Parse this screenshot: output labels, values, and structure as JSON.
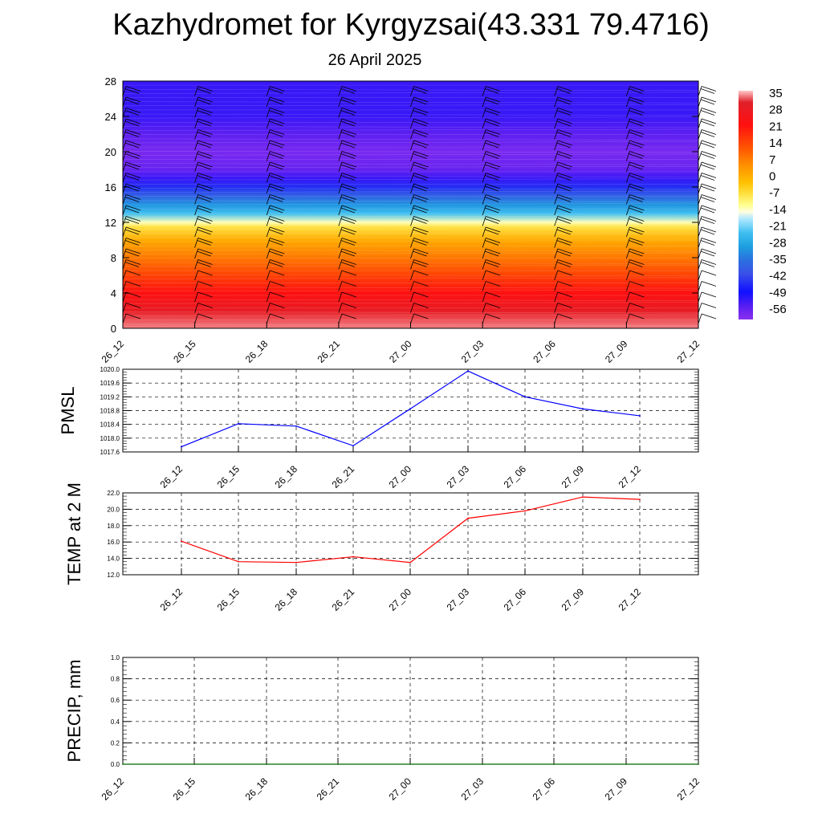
{
  "title": "Kazhydromet for Kyrgyzsai(43.331 79.4716)",
  "subtitle": "26 April 2025",
  "colorbar": {
    "labels": [
      "35",
      "28",
      "21",
      "14",
      "7",
      "0",
      "-7",
      "-14",
      "-21",
      "-28",
      "-35",
      "-42",
      "-49",
      "-56"
    ]
  },
  "chart_data": [
    {
      "type": "heatmap",
      "description": "Temperature cross-section vs height with wind barbs",
      "x_categories": [
        "26_12",
        "26_15",
        "26_18",
        "26_21",
        "27_00",
        "27_03",
        "27_06",
        "27_09",
        "27_12"
      ],
      "y_ticks": [
        "0",
        "4",
        "8",
        "12",
        "16",
        "20",
        "24",
        "28"
      ],
      "ylim": [
        0,
        28
      ],
      "profile": [
        {
          "y": 0,
          "t": 33
        },
        {
          "y": 2,
          "t": 28
        },
        {
          "y": 4,
          "t": 21
        },
        {
          "y": 6,
          "t": 14
        },
        {
          "y": 8,
          "t": 7
        },
        {
          "y": 10,
          "t": 0
        },
        {
          "y": 11.5,
          "t": -8
        },
        {
          "y": 12,
          "t": -14
        },
        {
          "y": 13,
          "t": -24
        },
        {
          "y": 14,
          "t": -31
        },
        {
          "y": 15,
          "t": -38
        },
        {
          "y": 16,
          "t": -45
        },
        {
          "y": 17,
          "t": -52
        },
        {
          "y": 18,
          "t": -56
        },
        {
          "y": 20,
          "t": -58
        },
        {
          "y": 22,
          "t": -55
        },
        {
          "y": 24,
          "t": -52
        },
        {
          "y": 26,
          "t": -52
        },
        {
          "y": 28,
          "t": -52
        }
      ]
    },
    {
      "type": "line",
      "ylabel": "PMSL",
      "categories": [
        "26_12",
        "26_15",
        "26_18",
        "26_21",
        "27_00",
        "27_03",
        "27_06",
        "27_09",
        "27_12"
      ],
      "series": [
        {
          "values": [
            1017.75,
            1018.42,
            1018.35,
            1017.78,
            1018.85,
            1019.95,
            1019.2,
            1018.85,
            1018.65
          ],
          "color": "#0000ff"
        }
      ],
      "y_ticks": [
        "1017.6",
        "1018.0",
        "1018.4",
        "1018.8",
        "1019.2",
        "1019.6",
        "1020.0"
      ],
      "ylim": [
        1017.6,
        1020.0
      ],
      "grid": true
    },
    {
      "type": "line",
      "ylabel": "TEMP at 2 M",
      "categories": [
        "26_12",
        "26_15",
        "26_18",
        "26_21",
        "27_00",
        "27_03",
        "27_06",
        "27_09",
        "27_12"
      ],
      "series": [
        {
          "values": [
            16.1,
            13.6,
            13.5,
            14.2,
            13.5,
            18.9,
            19.8,
            21.5,
            21.2
          ],
          "color": "#ff0000"
        }
      ],
      "y_ticks": [
        "12.0",
        "14.0",
        "16.0",
        "18.0",
        "20.0",
        "22.0"
      ],
      "ylim": [
        12.0,
        22.0
      ],
      "grid": true
    },
    {
      "type": "line",
      "ylabel": "PRECIP, mm",
      "categories": [
        "26_12",
        "26_15",
        "26_18",
        "26_21",
        "27_00",
        "27_03",
        "27_06",
        "27_09",
        "27_12"
      ],
      "series": [
        {
          "values": [
            0,
            0,
            0,
            0,
            0,
            0,
            0,
            0,
            0
          ],
          "color": "#006400"
        }
      ],
      "y_ticks": [
        "0.0",
        "0.2",
        "0.4",
        "0.6",
        "0.8",
        "1.0"
      ],
      "ylim": [
        0.0,
        1.0
      ],
      "grid": true
    }
  ]
}
